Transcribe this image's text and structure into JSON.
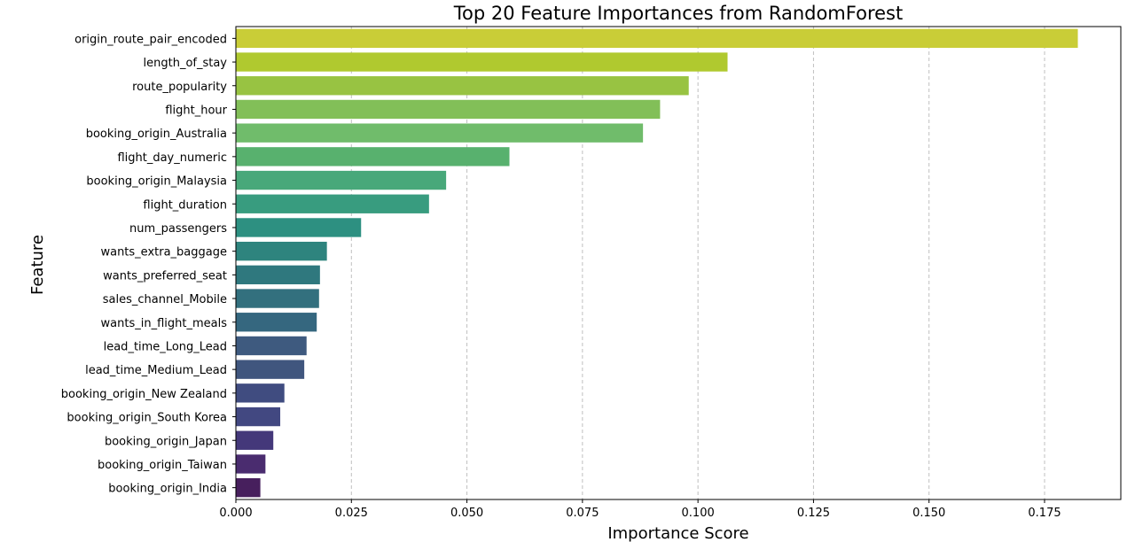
{
  "chart_data": {
    "type": "bar",
    "orientation": "horizontal",
    "title": "Top 20 Feature Importances from RandomForest",
    "xlabel": "Importance Score",
    "ylabel": "Feature",
    "xlim": [
      0,
      0.1915
    ],
    "xticks": [
      "0.000",
      "0.025",
      "0.050",
      "0.075",
      "0.100",
      "0.125",
      "0.150",
      "0.175"
    ],
    "grid": "x-dashed",
    "palette": "viridis",
    "categories": [
      "origin_route_pair_encoded",
      "length_of_stay",
      "route_popularity",
      "flight_hour",
      "booking_origin_Australia",
      "flight_day_numeric",
      "booking_origin_Malaysia",
      "flight_duration",
      "num_passengers",
      "wants_extra_baggage",
      "wants_preferred_seat",
      "sales_channel_Mobile",
      "wants_in_flight_meals",
      "lead_time_Long_Lead",
      "lead_time_Medium_Lead",
      "booking_origin_New Zealand",
      "booking_origin_South Korea",
      "booking_origin_Japan",
      "booking_origin_Taiwan",
      "booking_origin_India"
    ],
    "values": [
      0.1822,
      0.1064,
      0.098,
      0.0918,
      0.0881,
      0.0592,
      0.0455,
      0.0418,
      0.0271,
      0.0197,
      0.0182,
      0.018,
      0.0175,
      0.0153,
      0.0148,
      0.0105,
      0.0096,
      0.0081,
      0.0064,
      0.0053
    ],
    "colors": [
      "#c9cd37",
      "#b0c92f",
      "#98c342",
      "#82bf58",
      "#70bc6b",
      "#58b16e",
      "#48a87a",
      "#389c7f",
      "#2d9081",
      "#2e847e",
      "#2f787e",
      "#33707e",
      "#35677f",
      "#3e5a7f",
      "#40567e",
      "#404c80",
      "#424881",
      "#44387a",
      "#4a2c6f",
      "#471f5d"
    ]
  }
}
